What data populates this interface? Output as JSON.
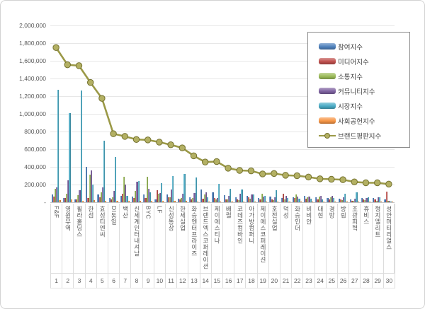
{
  "chart_data": {
    "type": "bar",
    "title": "",
    "categories": [
      "F&F",
      "영원무역",
      "휠라홀딩스",
      "한섬",
      "효성티엔씨",
      "DI동일",
      "백산",
      "신세계인터내셔날",
      "BYC",
      "LF",
      "신성통상",
      "한세실업",
      "화승엔터프라이즈",
      "브랜드엑스코퍼레이션",
      "제이에스티나",
      "배럴",
      "코데즈컴바인",
      "아가방컴퍼니",
      "제이에스코퍼레이션",
      "호전실업",
      "덕성",
      "화승인더",
      "비비안",
      "대현",
      "경방",
      "방림",
      "조광피혁",
      "휴비스",
      "형지엘리트",
      "성안머티리얼스"
    ],
    "ranks": [
      1,
      2,
      3,
      4,
      5,
      6,
      7,
      8,
      9,
      10,
      11,
      12,
      13,
      14,
      15,
      16,
      17,
      18,
      19,
      20,
      21,
      22,
      23,
      24,
      25,
      26,
      27,
      28,
      29,
      30
    ],
    "series": [
      {
        "name": "참여지수",
        "color": "#4f81bd",
        "values": [
          90000,
          50000,
          30000,
          400000,
          85000,
          45000,
          70000,
          65000,
          90000,
          35000,
          90000,
          40000,
          55000,
          145000,
          115000,
          80000,
          55000,
          75000,
          45000,
          65000,
          45000,
          55000,
          75000,
          55000,
          45000,
          40000,
          30000,
          45000,
          50000,
          35000
        ]
      },
      {
        "name": "미디어지수",
        "color": "#c0504d",
        "values": [
          65000,
          45000,
          35000,
          45000,
          60000,
          35000,
          95000,
          45000,
          50000,
          140000,
          60000,
          35000,
          35000,
          40000,
          50000,
          35000,
          30000,
          55000,
          30000,
          30000,
          95000,
          45000,
          40000,
          35000,
          30000,
          30000,
          20000,
          35000,
          30000,
          120000
        ]
      },
      {
        "name": "소통지수",
        "color": "#9bbb59",
        "values": [
          150000,
          95000,
          80000,
          310000,
          110000,
          60000,
          290000,
          130000,
          290000,
          100000,
          55000,
          50000,
          50000,
          90000,
          30000,
          30000,
          25000,
          40000,
          95000,
          25000,
          30000,
          85000,
          55000,
          65000,
          55000,
          25000,
          15000,
          25000,
          20000,
          15000
        ]
      },
      {
        "name": "커뮤니티지수",
        "color": "#8064a2",
        "values": [
          170000,
          250000,
          140000,
          360000,
          165000,
          130000,
          200000,
          230000,
          155000,
          105000,
          145000,
          95000,
          105000,
          110000,
          45000,
          75000,
          95000,
          90000,
          65000,
          60000,
          75000,
          65000,
          65000,
          70000,
          75000,
          55000,
          40000,
          50000,
          55000,
          20000
        ]
      },
      {
        "name": "시장지수",
        "color": "#4bacc6",
        "values": [
          1270000,
          1005000,
          1265000,
          200000,
          700000,
          510000,
          75000,
          240000,
          110000,
          215000,
          300000,
          320000,
          280000,
          60000,
          210000,
          155000,
          145000,
          85000,
          75000,
          135000,
          50000,
          40000,
          40000,
          30000,
          45000,
          95000,
          115000,
          55000,
          60000,
          10000
        ]
      },
      {
        "name": "사회공헌지수",
        "color": "#f79646",
        "values": [
          25000,
          30000,
          20000,
          25000,
          20000,
          15000,
          20000,
          20000,
          15000,
          20000,
          15000,
          15000,
          10000,
          10000,
          10000,
          10000,
          10000,
          10000,
          10000,
          10000,
          10000,
          10000,
          10000,
          10000,
          10000,
          10000,
          10000,
          10000,
          10000,
          5000
        ]
      }
    ],
    "line_series": {
      "name": "브랜드평판지수",
      "color": "#9b9947",
      "marker_fill": "#b3b063",
      "marker_stroke": "#74722f",
      "values": [
        1750000,
        1555000,
        1545000,
        1355000,
        1175000,
        775000,
        745000,
        710000,
        705000,
        680000,
        650000,
        615000,
        525000,
        455000,
        460000,
        385000,
        360000,
        355000,
        320000,
        325000,
        305000,
        300000,
        285000,
        265000,
        260000,
        255000,
        230000,
        220000,
        220000,
        205000
      ]
    },
    "ylim": [
      0,
      2000000
    ],
    "ytick_step": 200000,
    "ytick_labels": [
      "2,000,000",
      "1,800,000",
      "1,600,000",
      "1,400,000",
      "1,200,000",
      "1,000,000",
      "800,000",
      "600,000",
      "400,000",
      "200,000",
      "-"
    ],
    "grid": true,
    "legend_position": "top-right"
  }
}
